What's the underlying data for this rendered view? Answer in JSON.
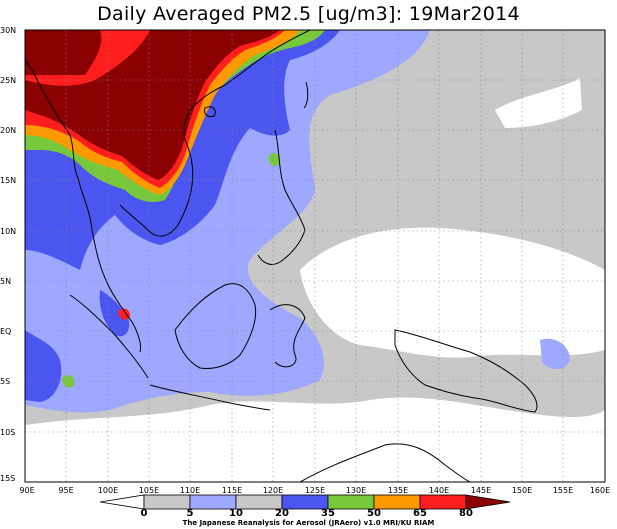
{
  "title": "Daily Averaged PM2.5 [ug/m3]: 19Mar2014",
  "y_ticks": [
    "30N",
    "25N",
    "20N",
    "15N",
    "10N",
    "5N",
    "EQ",
    "5S",
    "10S",
    "15S"
  ],
  "x_ticks": [
    "90E",
    "95E",
    "100E",
    "105E",
    "110E",
    "115E",
    "120E",
    "125E",
    "130E",
    "135E",
    "140E",
    "145E",
    "150E",
    "155E",
    "160E"
  ],
  "colorbar": {
    "labels": [
      "0",
      "5",
      "10",
      "20",
      "35",
      "50",
      "65",
      "80"
    ],
    "colors": [
      "#ffffff",
      "#c8c8c8",
      "#9ea8ff",
      "#4b55f0",
      "#78c83c",
      "#ff9900",
      "#ff1e1e",
      "#8b0000"
    ]
  },
  "credit": "The Japanese Reanalysis for Aerosol (JRAero) v1.0 MRI/KU RIAM",
  "map": {
    "lon_range": [
      90,
      160
    ],
    "lat_range": [
      -15,
      30
    ],
    "colors": {
      "background": "#c8c8c8",
      "clean": "#ffffff",
      "light": "#9ea8ff",
      "medium": "#4b55f0",
      "green": "#78c83c",
      "orange": "#ff9900",
      "red": "#ff1e1e",
      "darkred": "#8b0000"
    }
  }
}
